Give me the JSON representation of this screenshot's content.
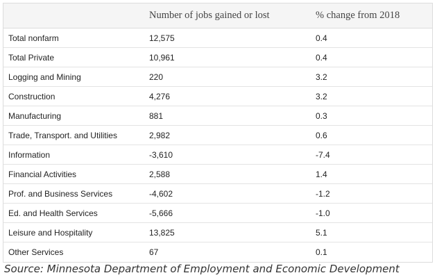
{
  "table": {
    "headers": {
      "sector": "",
      "jobs": "Number of jobs gained or lost",
      "pct": "% change from 2018"
    },
    "rows": [
      {
        "sector": "Total nonfarm",
        "jobs": "12,575",
        "pct": "0.4"
      },
      {
        "sector": "Total Private",
        "jobs": "10,961",
        "pct": "0.4"
      },
      {
        "sector": "Logging and Mining",
        "jobs": "220",
        "pct": "3.2"
      },
      {
        "sector": "Construction",
        "jobs": "4,276",
        "pct": "3.2"
      },
      {
        "sector": "Manufacturing",
        "jobs": "881",
        "pct": "0.3"
      },
      {
        "sector": "Trade, Transport. and Utilities",
        "jobs": "2,982",
        "pct": "0.6"
      },
      {
        "sector": "Information",
        "jobs": "-3,610",
        "pct": "-7.4"
      },
      {
        "sector": "Financial Activities",
        "jobs": "2,588",
        "pct": "1.4"
      },
      {
        "sector": "Prof. and Business Services",
        "jobs": "-4,602",
        "pct": "-1.2"
      },
      {
        "sector": "Ed. and Health Services",
        "jobs": "-5,666",
        "pct": "-1.0"
      },
      {
        "sector": "Leisure and Hospitality",
        "jobs": "13,825",
        "pct": "5.1"
      },
      {
        "sector": "Other Services",
        "jobs": "67",
        "pct": "0.1"
      }
    ]
  },
  "source": "Source: Minnesota Department of Employment and Economic Development"
}
